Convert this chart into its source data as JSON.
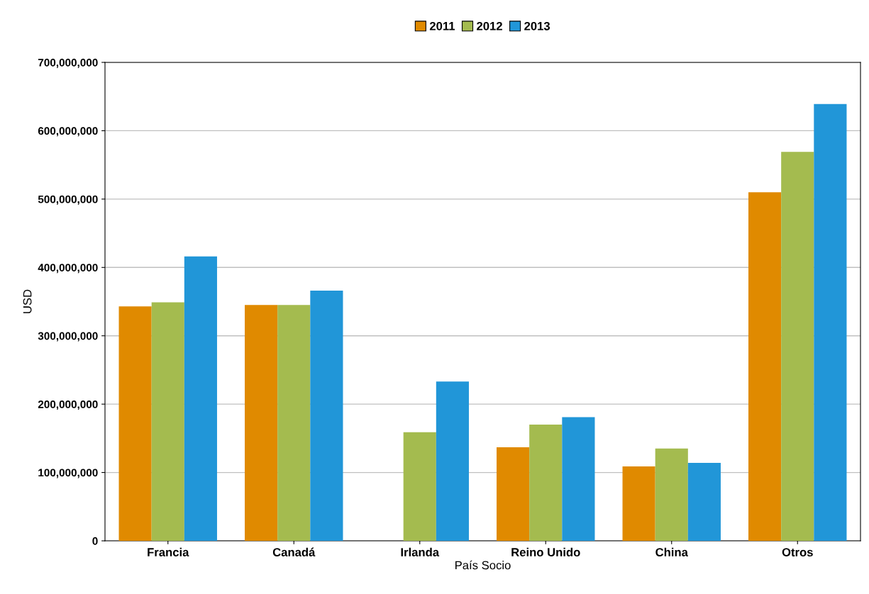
{
  "chart_data": {
    "type": "bar",
    "xlabel": "País Socio",
    "ylabel": "USD",
    "categories": [
      "Francia",
      "Canadá",
      "Irlanda",
      "Reino Unido",
      "China",
      "Otros"
    ],
    "series": [
      {
        "name": "2011",
        "color": "#e08a00",
        "values": [
          343000000,
          345000000,
          null,
          137000000,
          109000000,
          510000000
        ]
      },
      {
        "name": "2012",
        "color": "#a4bb4f",
        "values": [
          349000000,
          345000000,
          159000000,
          170000000,
          135000000,
          569000000
        ]
      },
      {
        "name": "2013",
        "color": "#2196d8",
        "values": [
          416000000,
          366000000,
          233000000,
          181000000,
          114000000,
          639000000
        ]
      }
    ],
    "ylim": [
      0,
      700000000
    ],
    "yticks": [
      {
        "value": 0,
        "label": "0"
      },
      {
        "value": 100000000,
        "label": "100,000,000"
      },
      {
        "value": 200000000,
        "label": "200,000,000"
      },
      {
        "value": 300000000,
        "label": "300,000,000"
      },
      {
        "value": 400000000,
        "label": "400,000,000"
      },
      {
        "value": 500000000,
        "label": "500,000,000"
      },
      {
        "value": 600000000,
        "label": "600,000,000"
      },
      {
        "value": 700000000,
        "label": "700,000,000"
      }
    ],
    "grid": "y",
    "legend": "top"
  }
}
